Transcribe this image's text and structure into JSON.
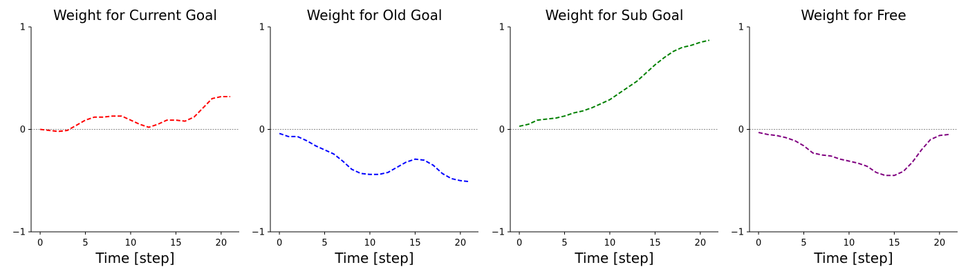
{
  "chart_data": [
    {
      "type": "line",
      "title": "Weight for Current Goal",
      "xlabel": "Time [step]",
      "ylabel": "",
      "xlim": [
        -1,
        22
      ],
      "ylim": [
        -1,
        1
      ],
      "xticks": [
        0,
        5,
        10,
        15,
        20
      ],
      "yticks": [
        -1,
        0,
        1
      ],
      "zero_line": true,
      "series": [
        {
          "color": "#ff0000",
          "style": "dashed",
          "x": [
            0,
            1,
            2,
            3,
            4,
            5,
            6,
            7,
            8,
            9,
            10,
            11,
            12,
            13,
            14,
            15,
            16,
            17,
            18,
            19,
            20,
            21
          ],
          "values": [
            0.0,
            -0.01,
            -0.02,
            -0.01,
            0.04,
            0.09,
            0.12,
            0.12,
            0.13,
            0.13,
            0.09,
            0.05,
            0.02,
            0.05,
            0.09,
            0.09,
            0.08,
            0.12,
            0.21,
            0.3,
            0.32,
            0.32
          ]
        }
      ]
    },
    {
      "type": "line",
      "title": "Weight for Old Goal",
      "xlabel": "Time [step]",
      "ylabel": "",
      "xlim": [
        -1,
        22
      ],
      "ylim": [
        -1,
        1
      ],
      "xticks": [
        0,
        5,
        10,
        15,
        20
      ],
      "yticks": [
        -1,
        0,
        1
      ],
      "zero_line": true,
      "series": [
        {
          "color": "#0000ff",
          "style": "dashed",
          "x": [
            0,
            1,
            2,
            3,
            4,
            5,
            6,
            7,
            8,
            9,
            10,
            11,
            12,
            13,
            14,
            15,
            16,
            17,
            18,
            19,
            20,
            21
          ],
          "values": [
            -0.04,
            -0.07,
            -0.07,
            -0.11,
            -0.16,
            -0.2,
            -0.24,
            -0.31,
            -0.39,
            -0.43,
            -0.44,
            -0.44,
            -0.42,
            -0.37,
            -0.32,
            -0.29,
            -0.3,
            -0.35,
            -0.43,
            -0.48,
            -0.5,
            -0.51
          ]
        }
      ]
    },
    {
      "type": "line",
      "title": "Weight for Sub Goal",
      "xlabel": "Time [step]",
      "ylabel": "",
      "xlim": [
        -1,
        22
      ],
      "ylim": [
        -1,
        1
      ],
      "xticks": [
        0,
        5,
        10,
        15,
        20
      ],
      "yticks": [
        -1,
        0,
        1
      ],
      "zero_line": true,
      "series": [
        {
          "color": "#008000",
          "style": "dashed",
          "x": [
            0,
            1,
            2,
            3,
            4,
            5,
            6,
            7,
            8,
            9,
            10,
            11,
            12,
            13,
            14,
            15,
            16,
            17,
            18,
            19,
            20,
            21
          ],
          "values": [
            0.03,
            0.05,
            0.09,
            0.1,
            0.11,
            0.13,
            0.16,
            0.18,
            0.21,
            0.25,
            0.29,
            0.35,
            0.41,
            0.47,
            0.55,
            0.63,
            0.7,
            0.76,
            0.8,
            0.82,
            0.85,
            0.87
          ]
        }
      ]
    },
    {
      "type": "line",
      "title": "Weight for Free",
      "xlabel": "Time [step]",
      "ylabel": "",
      "xlim": [
        -1,
        22
      ],
      "ylim": [
        -1,
        1
      ],
      "xticks": [
        0,
        5,
        10,
        15,
        20
      ],
      "yticks": [
        -1,
        0,
        1
      ],
      "zero_line": true,
      "series": [
        {
          "color": "#800080",
          "style": "dashed",
          "x": [
            0,
            1,
            2,
            3,
            4,
            5,
            6,
            7,
            8,
            9,
            10,
            11,
            12,
            13,
            14,
            15,
            16,
            17,
            18,
            19,
            20,
            21
          ],
          "values": [
            -0.03,
            -0.05,
            -0.06,
            -0.08,
            -0.11,
            -0.16,
            -0.23,
            -0.25,
            -0.26,
            -0.29,
            -0.31,
            -0.33,
            -0.36,
            -0.42,
            -0.45,
            -0.45,
            -0.41,
            -0.32,
            -0.2,
            -0.1,
            -0.06,
            -0.05
          ]
        }
      ]
    }
  ]
}
